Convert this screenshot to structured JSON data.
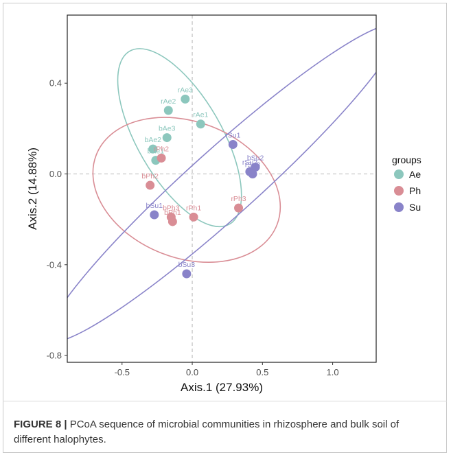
{
  "chart_data": {
    "type": "scatter",
    "xlabel": "Axis.1 (27.93%)",
    "ylabel": "Axis.2 (14.88%)",
    "xlim": [
      -0.89,
      1.31
    ],
    "ylim": [
      -0.83,
      0.7
    ],
    "x_ticks": [
      -0.5,
      0.0,
      0.5,
      1.0
    ],
    "x_tick_labels": [
      "-0.5",
      "0.0",
      "0.5",
      "1.0"
    ],
    "y_ticks": [
      -0.8,
      -0.4,
      0.0,
      0.4
    ],
    "y_tick_labels": [
      "-0.8",
      "-0.4",
      "0.0",
      "0.4"
    ],
    "reference_lines": {
      "x": 0,
      "y": 0
    },
    "legend": {
      "title": "groups",
      "position": "right"
    },
    "series": [
      {
        "name": "Ae",
        "color": "#8cc7bd",
        "points": [
          {
            "label": "rAe3",
            "x": -0.05,
            "y": 0.33
          },
          {
            "label": "rAe2",
            "x": -0.17,
            "y": 0.28
          },
          {
            "label": "rAe1",
            "x": 0.06,
            "y": 0.22
          },
          {
            "label": "bAe3",
            "x": -0.18,
            "y": 0.16
          },
          {
            "label": "bAe2",
            "x": -0.28,
            "y": 0.11
          },
          {
            "label": "bAe1",
            "x": -0.26,
            "y": 0.06
          }
        ],
        "ellipse": {
          "cx": -0.09,
          "cy": 0.16,
          "rx": 0.3,
          "ry": 0.44,
          "angle_deg": -30
        }
      },
      {
        "name": "Ph",
        "color": "#d98d95",
        "points": [
          {
            "label": "rPh2",
            "x": -0.22,
            "y": 0.07
          },
          {
            "label": "bPh2",
            "x": -0.3,
            "y": -0.05
          },
          {
            "label": "bPh3",
            "x": -0.15,
            "y": -0.19
          },
          {
            "label": "bPh1",
            "x": -0.14,
            "y": -0.21
          },
          {
            "label": "rPh1",
            "x": 0.01,
            "y": -0.19
          },
          {
            "label": "rPh3",
            "x": 0.33,
            "y": -0.15
          }
        ],
        "ellipse": {
          "cx": -0.04,
          "cy": -0.07,
          "rx": 0.69,
          "ry": 0.3,
          "angle_deg": 21
        }
      },
      {
        "name": "Su",
        "color": "#8983c9",
        "points": [
          {
            "label": "rSu1",
            "x": 0.29,
            "y": 0.13
          },
          {
            "label": "bSu2",
            "x": 0.45,
            "y": 0.03
          },
          {
            "label": "rSu2",
            "x": 0.41,
            "y": 0.01
          },
          {
            "label": "rSu3",
            "x": 0.43,
            "y": 0.0
          },
          {
            "label": "bSu1",
            "x": -0.27,
            "y": -0.18
          },
          {
            "label": "bSu3",
            "x": -0.04,
            "y": -0.44
          }
        ],
        "ellipse": {
          "cx": 0.22,
          "cy": -0.04,
          "rx": 0.24,
          "ry": 1.03,
          "angle_deg": 48
        }
      }
    ]
  },
  "caption": {
    "label": "FIGURE 8 |",
    "text": " PCoA sequence of microbial communities in rhizosphere and bulk soil of different halophytes."
  }
}
